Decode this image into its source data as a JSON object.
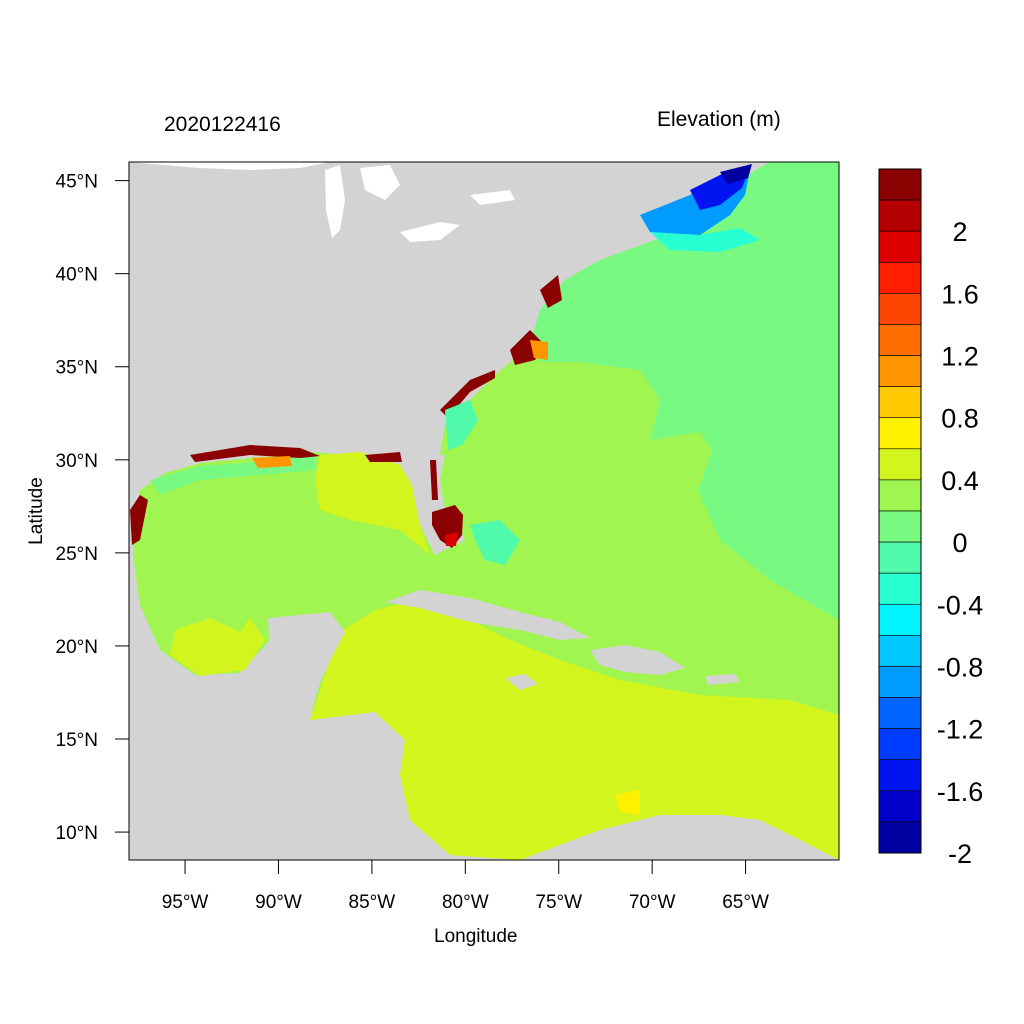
{
  "title_left": "2020122416",
  "title_right": "Elevation (m)",
  "x_axis_label": "Longitude",
  "y_axis_label": "Latitude",
  "lon_ticks": [
    "95°W",
    "90°W",
    "85°W",
    "80°W",
    "75°W",
    "70°W",
    "65°W"
  ],
  "lat_ticks": [
    "45°N",
    "40°N",
    "35°N",
    "30°N",
    "25°N",
    "20°N",
    "15°N",
    "10°N"
  ],
  "map_extent": {
    "lon_min": -98,
    "lon_max": -60,
    "lat_min": 8.5,
    "lat_max": 46
  },
  "colorbar": {
    "labels": [
      "2",
      "1.6",
      "1.2",
      "0.8",
      "0.4",
      "0",
      "-0.4",
      "-0.8",
      "-1.2",
      "-1.6",
      "-2"
    ],
    "colors": [
      "#8b0000",
      "#b40000",
      "#dc0000",
      "#ff1e00",
      "#ff4600",
      "#ff6e00",
      "#ff9600",
      "#ffc800",
      "#fff000",
      "#d2f51e",
      "#a0f550",
      "#78fa82",
      "#50faaa",
      "#28ffd2",
      "#00f5ff",
      "#00c8ff",
      "#009bff",
      "#0064ff",
      "#003cff",
      "#0014f0",
      "#0000c8",
      "#0000a0"
    ]
  },
  "colors": {
    "land": "#d3d3d3",
    "water_zero": "#78fa82",
    "water_plus": "#a0f550",
    "water_pos": "#d2f51e",
    "surge_high": "#8b0000",
    "surge_low": "#0014f0"
  }
}
